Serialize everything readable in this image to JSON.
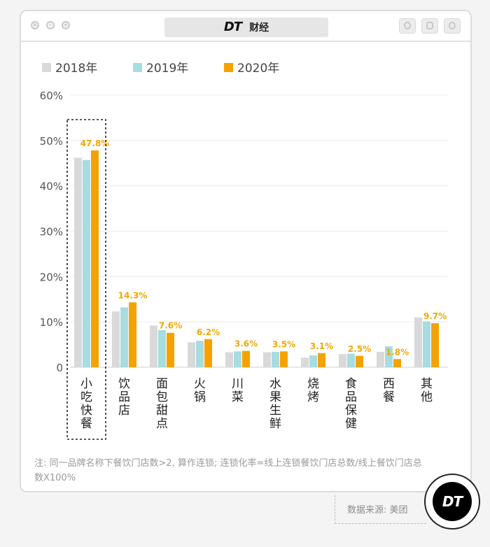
{
  "window": {
    "logo": "DT",
    "title": "财经"
  },
  "chart_data": {
    "type": "bar",
    "title": "",
    "xlabel": "",
    "ylabel": "",
    "ylim": [
      0,
      60
    ],
    "yticks": [
      "0",
      "10%",
      "20%",
      "30%",
      "40%",
      "50%",
      "60%"
    ],
    "grid": true,
    "legend_position": "top-left",
    "categories": [
      "小吃快餐",
      "饮品店",
      "面包甜点",
      "火锅",
      "川菜",
      "水果生鲜",
      "烧烤",
      "食品保健",
      "西餐",
      "其他"
    ],
    "series": [
      {
        "name": "2018年",
        "color": "#d9d9d9",
        "values": [
          46.2,
          12.3,
          9.2,
          5.5,
          3.3,
          3.3,
          2.1,
          2.9,
          3.4,
          11.0
        ]
      },
      {
        "name": "2019年",
        "color": "#a7dce0",
        "values": [
          45.7,
          13.2,
          8.2,
          5.8,
          3.5,
          3.4,
          2.6,
          3.0,
          4.6,
          10.1
        ]
      },
      {
        "name": "2020年",
        "color": "#f5a200",
        "values": [
          47.8,
          14.3,
          7.6,
          6.2,
          3.6,
          3.5,
          3.1,
          2.5,
          1.8,
          9.7
        ]
      }
    ],
    "data_labels": [
      "47.8%",
      "14.3%",
      "7.6%",
      "6.2%",
      "3.6%",
      "3.5%",
      "3.1%",
      "2.5%",
      "1.8%",
      "9.7%"
    ],
    "highlight_category": "小吃快餐",
    "label_color": "#f2a700"
  },
  "note": "注: 同一品牌名称下餐饮门店数>2, 算作连锁; 连锁化率=线上连锁餐饮门店总数/线上餐饮门店总数X100%",
  "source": "数据来源: 美团",
  "badge": "DT"
}
